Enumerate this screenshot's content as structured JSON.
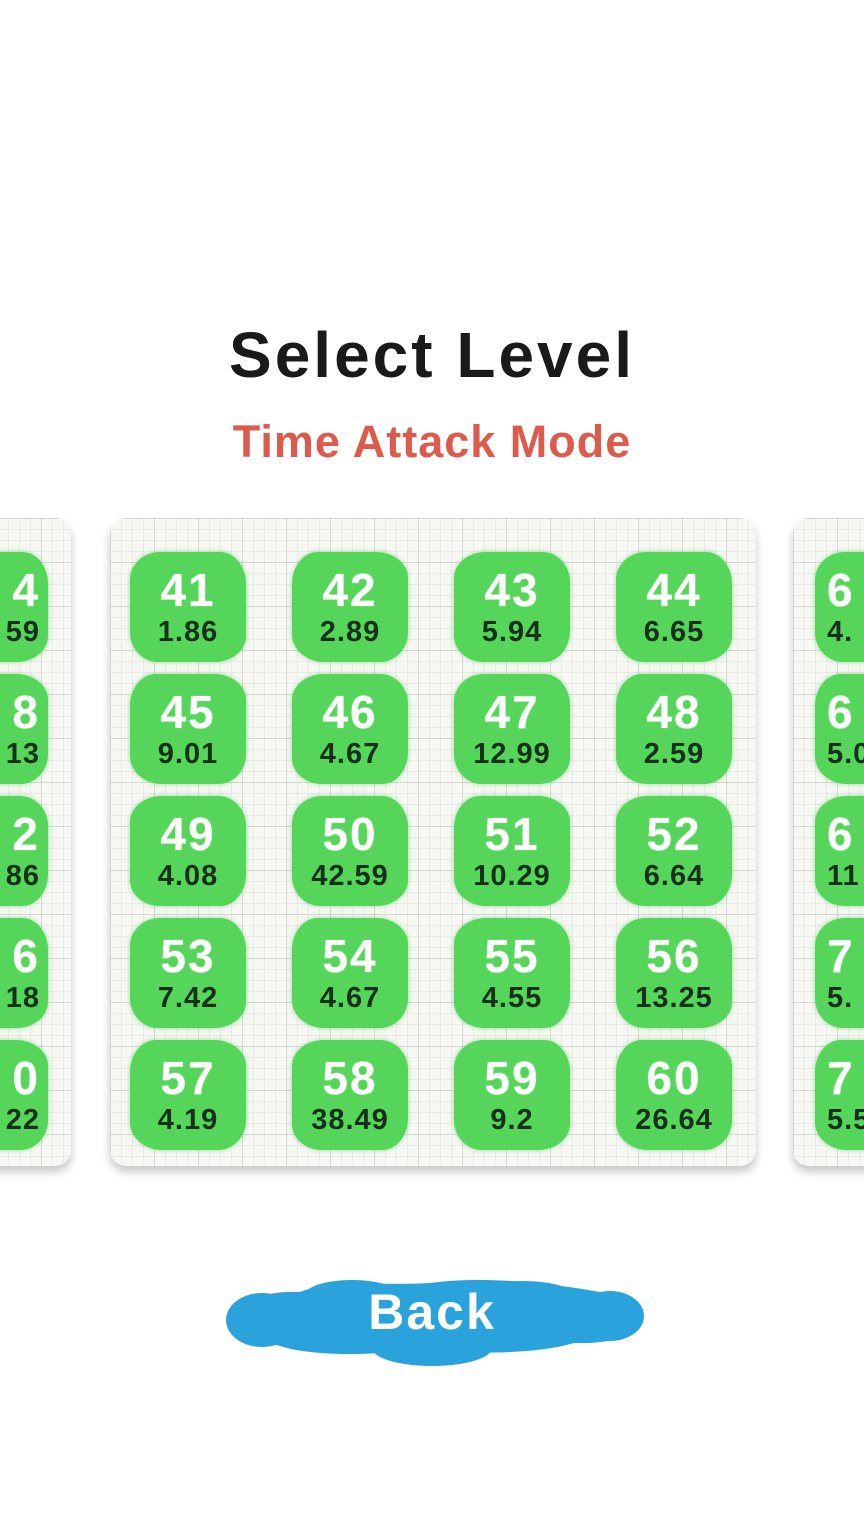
{
  "header": {
    "title": "Select Level",
    "subtitle": "Time Attack Mode"
  },
  "footer": {
    "back_label": "Back"
  },
  "colors": {
    "level_green": "#55d65a",
    "subtitle_red": "#dc5b4d",
    "back_blue": "#2aa3dc",
    "title_black": "#1a1a1a",
    "time_text": "#17301b",
    "card_paper": "#f7f7f4"
  },
  "current_page": {
    "levels": [
      {
        "number": "41",
        "time": "1.86"
      },
      {
        "number": "42",
        "time": "2.89"
      },
      {
        "number": "43",
        "time": "5.94"
      },
      {
        "number": "44",
        "time": "6.65"
      },
      {
        "number": "45",
        "time": "9.01"
      },
      {
        "number": "46",
        "time": "4.67"
      },
      {
        "number": "47",
        "time": "12.99"
      },
      {
        "number": "48",
        "time": "2.59"
      },
      {
        "number": "49",
        "time": "4.08"
      },
      {
        "number": "50",
        "time": "42.59"
      },
      {
        "number": "51",
        "time": "10.29"
      },
      {
        "number": "52",
        "time": "6.64"
      },
      {
        "number": "53",
        "time": "7.42"
      },
      {
        "number": "54",
        "time": "4.67"
      },
      {
        "number": "55",
        "time": "4.55"
      },
      {
        "number": "56",
        "time": "13.25"
      },
      {
        "number": "57",
        "time": "4.19"
      },
      {
        "number": "58",
        "time": "38.49"
      },
      {
        "number": "59",
        "time": "9.2"
      },
      {
        "number": "60",
        "time": "26.64"
      }
    ]
  },
  "previous_page": {
    "levels": [
      {
        "number": "4",
        "time": "59"
      },
      {
        "number": "8",
        "time": "13"
      },
      {
        "number": "2",
        "time": "86"
      },
      {
        "number": "6",
        "time": "18"
      },
      {
        "number": "0",
        "time": "22"
      }
    ]
  },
  "next_page": {
    "levels": [
      {
        "number": "6",
        "time": "4."
      },
      {
        "number": "6",
        "time": "5.0"
      },
      {
        "number": "6",
        "time": "11"
      },
      {
        "number": "7",
        "time": "5."
      },
      {
        "number": "7",
        "time": "5.5"
      }
    ]
  }
}
